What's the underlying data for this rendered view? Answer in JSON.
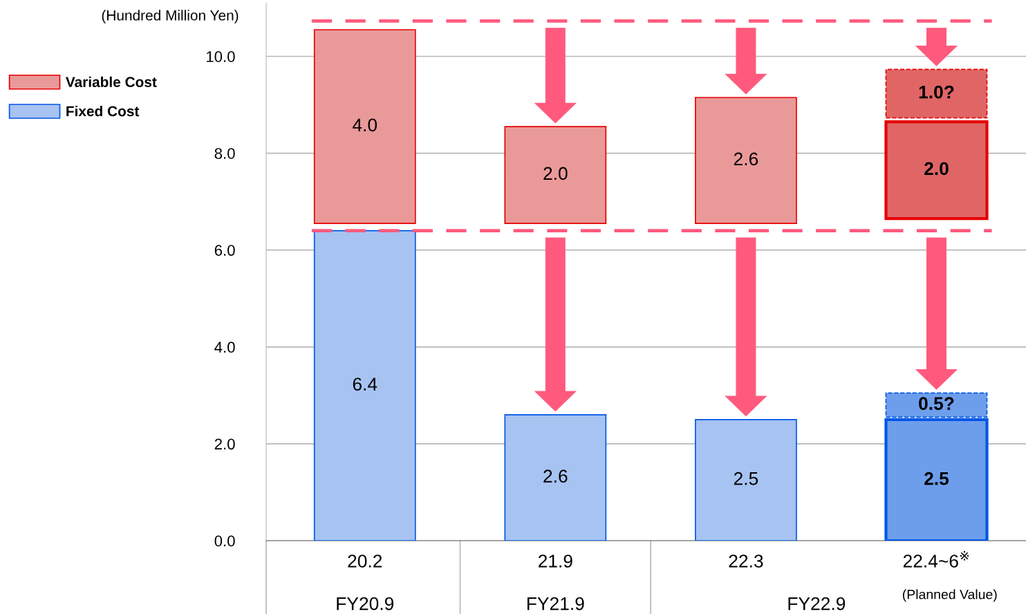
{
  "chart_data": {
    "type": "bar",
    "ylabel": "(Hundred Million Yen)",
    "categories": [
      "20.2",
      "21.9",
      "22.3",
      "22.4~6$^{※}$"
    ],
    "series": [
      {
        "name": "Fixed Cost",
        "color": "#a7c3f2",
        "colors": [
          "#a7c3f2",
          "#a7c3f2",
          "#a7c3f2",
          "#6d9eeb"
        ],
        "values": [
          6.4,
          2.6,
          2.5,
          2.5
        ],
        "base": [
          0,
          0,
          0,
          0
        ],
        "value_labels": [
          "6.4",
          "2.6",
          "2.5",
          "2.5"
        ]
      },
      {
        "color": "#6d9eeb",
        "line_style": "dashed",
        "values": [
          null,
          null,
          null,
          0.5
        ],
        "base": [
          null,
          null,
          null,
          2.55
        ],
        "value_labels": [
          null,
          null,
          null,
          "0.5?"
        ]
      },
      {
        "name": "Variable Cost",
        "color": "#ea9999",
        "colors": [
          "#ea9999",
          "#ea9999",
          "#ea9999",
          "#e06666"
        ],
        "values": [
          4.0,
          2.0,
          2.6,
          2.0
        ],
        "base": [
          6.55,
          6.55,
          6.55,
          6.65
        ],
        "value_labels": [
          "4.0",
          "2.0",
          "2.6",
          "2.0"
        ]
      },
      {
        "color": "#e06666",
        "line_style": "dashed",
        "values": [
          null,
          null,
          null,
          1.0
        ],
        "base": [
          null,
          null,
          null,
          8.73
        ],
        "value_labels": [
          null,
          null,
          null,
          "1.0?"
        ]
      }
    ],
    "ylim": [
      0,
      11.1
    ],
    "yticks": [
      {
        "value": 0,
        "label": "0.0"
      },
      {
        "value": 2,
        "label": "2.0"
      },
      {
        "value": 4,
        "label": "4.0"
      },
      {
        "value": 6,
        "label": "6.0"
      },
      {
        "value": 8,
        "label": "8.0"
      },
      {
        "value": 10,
        "label": "10.0"
      }
    ],
    "ref_lines": [
      {
        "axis": "y",
        "value": 10.73,
        "color": "#ff5a7d",
        "line_style": "dashed"
      },
      {
        "axis": "y",
        "value": 6.4,
        "color": "#ff5a7d",
        "line_style": "dashed"
      }
    ],
    "annotations": [
      "FY20.9",
      "FY21.9",
      "FY22.9",
      "(Planned Value)"
    ],
    "grid": "y",
    "legend": "top left"
  }
}
